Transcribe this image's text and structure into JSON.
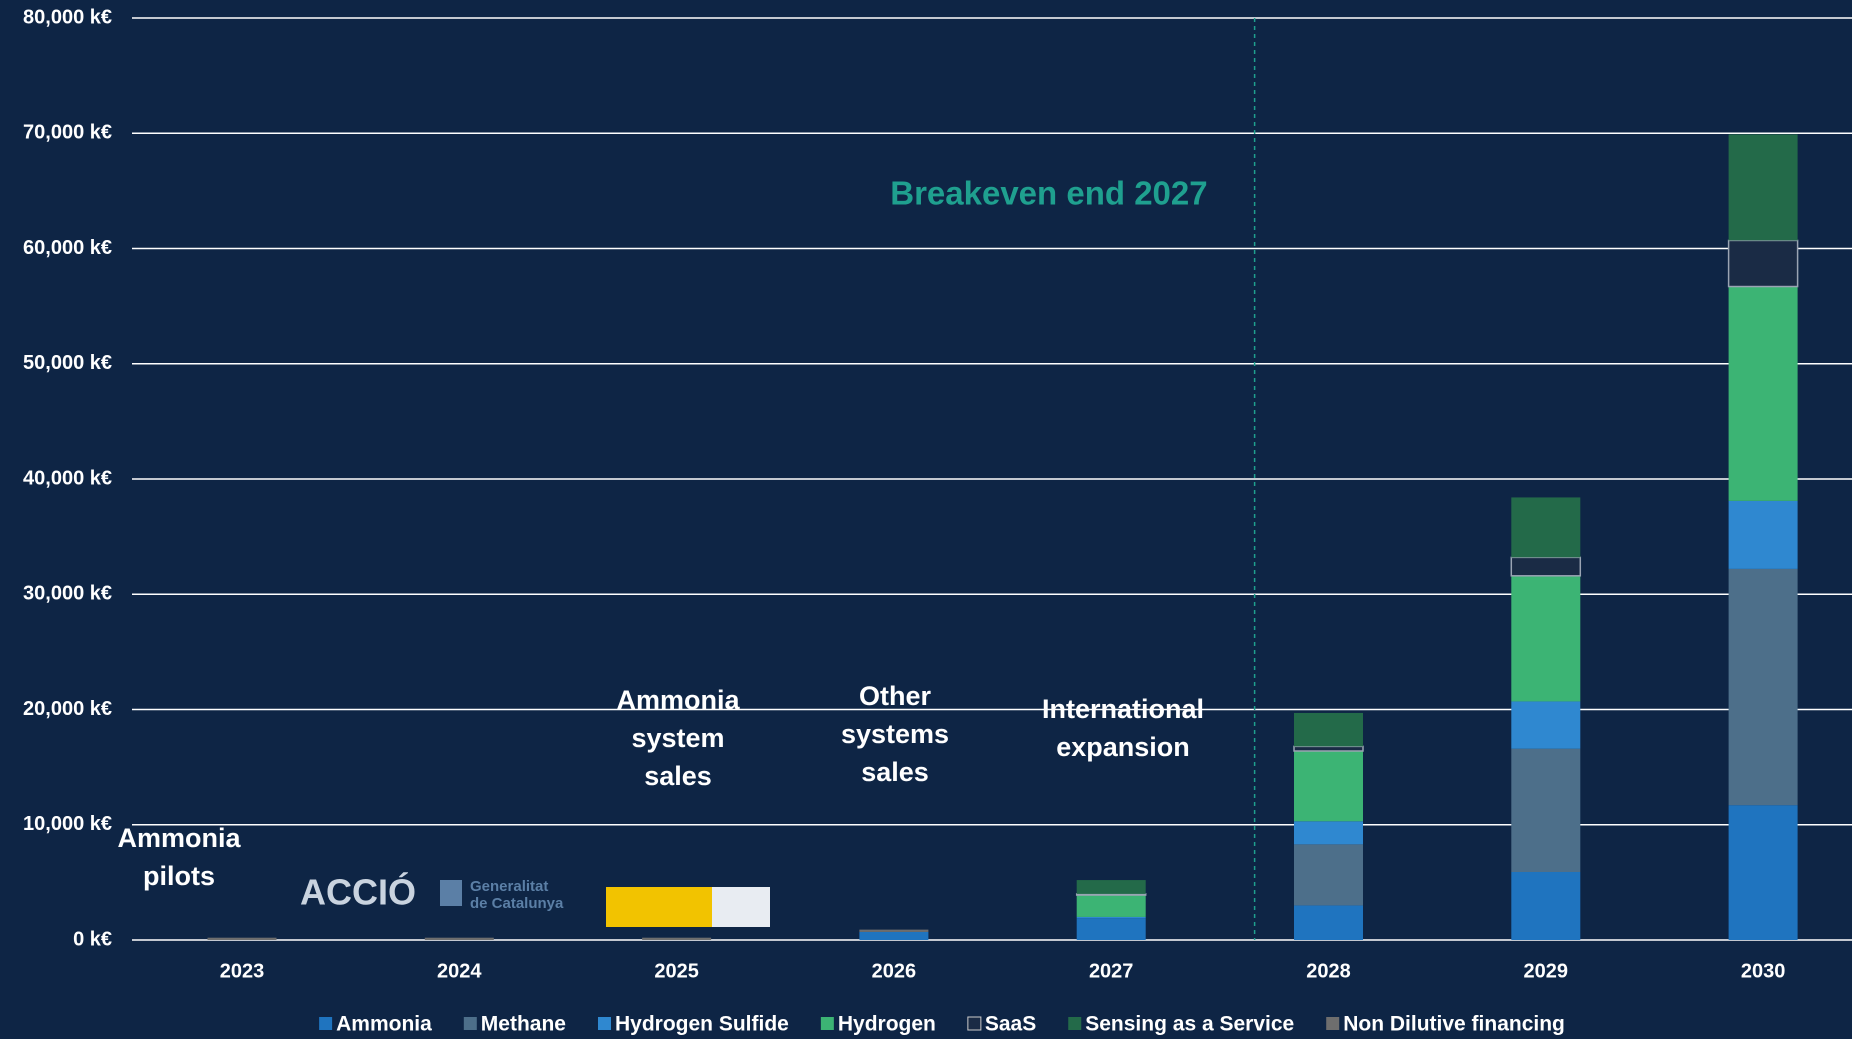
{
  "chart_data": {
    "type": "stacked-bar",
    "categories": [
      "2023",
      "2024",
      "2025",
      "2026",
      "2027",
      "2028",
      "2029",
      "2030"
    ],
    "series": [
      {
        "name": "Ammonia",
        "color": "#1f74bf",
        "values": [
          0,
          0,
          0,
          700,
          1900,
          3000,
          5900,
          11700
        ]
      },
      {
        "name": "Methane",
        "color": "#4d6f8a",
        "values": [
          0,
          0,
          0,
          0,
          0,
          5300,
          10700,
          20500
        ]
      },
      {
        "name": "Hydrogen Sulfide",
        "color": "#2f88d0",
        "values": [
          0,
          0,
          0,
          0,
          100,
          2000,
          4100,
          5900
        ]
      },
      {
        "name": "Hydrogen",
        "color": "#3cb474",
        "values": [
          0,
          0,
          0,
          0,
          1900,
          6100,
          10900,
          18600
        ]
      },
      {
        "name": "SaaS",
        "color": "#1a2b45",
        "values": [
          0,
          0,
          0,
          0,
          100,
          400,
          1600,
          4000
        ]
      },
      {
        "name": "Sensing as a Service",
        "color": "#236a49",
        "values": [
          0,
          0,
          0,
          0,
          1200,
          2900,
          5200,
          9200
        ]
      },
      {
        "name": "Non Dilutive financing",
        "color": "#6e6e6e",
        "values": [
          200,
          200,
          200,
          200,
          0,
          0,
          0,
          0
        ]
      }
    ],
    "ylim": [
      0,
      80000
    ],
    "yticks": [
      {
        "value": 0,
        "label": "0 k€"
      },
      {
        "value": 10000,
        "label": "10,000 k€"
      },
      {
        "value": 20000,
        "label": "20,000 k€"
      },
      {
        "value": 30000,
        "label": "30,000 k€"
      },
      {
        "value": 40000,
        "label": "40,000 k€"
      },
      {
        "value": 50000,
        "label": "50,000 k€"
      },
      {
        "value": 60000,
        "label": "60,000 k€"
      },
      {
        "value": 70000,
        "label": "70,000 k€"
      },
      {
        "value": 80000,
        "label": "80,000 k€"
      }
    ],
    "grid": true,
    "legend": "bottom",
    "annotations": [
      "Breakeven end 2027",
      "Ammonia pilots",
      "Ammonia system sales",
      "Other systems sales",
      "International expansion"
    ],
    "logos": [
      "ACCIÓ",
      "Generalitat de Catalunya"
    ]
  }
}
